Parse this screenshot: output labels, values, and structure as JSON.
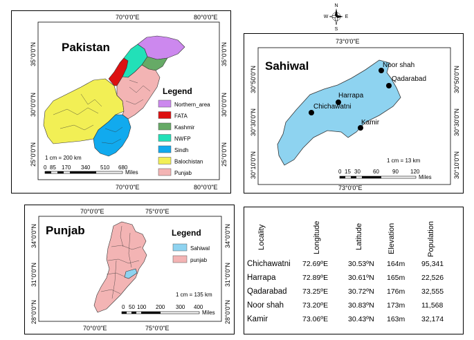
{
  "compass": {
    "n": "N",
    "s": "S",
    "e": "E",
    "w": "W"
  },
  "pakistan": {
    "title": "Pakistan",
    "top_lon": [
      "70°0'0\"E",
      "80°0'0\"E"
    ],
    "bottom_lon": [
      "70°0'0\"E",
      "80°0'0\"E"
    ],
    "left_lat": [
      "35°0'0\"N",
      "30°0'0\"N",
      "25°0'0\"N"
    ],
    "right_lat": [
      "35°0'0\"N",
      "30°0'0\"N",
      "25°0'0\"N"
    ],
    "scale_note": "1 cm = 200 km",
    "scale_ticks": [
      "0",
      "85",
      "170",
      "340",
      "510",
      "680"
    ],
    "scale_unit": "Miles",
    "legend": {
      "title": "Legend",
      "items": [
        {
          "label": "Northern_area",
          "color": "#cc88ee"
        },
        {
          "label": "FATA",
          "color": "#dd1111"
        },
        {
          "label": "Kashmir",
          "color": "#66aa66"
        },
        {
          "label": "NWFP",
          "color": "#22e0b8"
        },
        {
          "label": "Sindh",
          "color": "#11aaee"
        },
        {
          "label": "Balochistan",
          "color": "#f2ef55"
        },
        {
          "label": "Punjab",
          "color": "#f3b4b4"
        }
      ]
    }
  },
  "sahiwal": {
    "title": "Sahiwal",
    "top_lon": "73°0'0\"E",
    "bottom_lon": "73°0'0\"E",
    "left_lat": [
      "30°50'0\"N",
      "30°30'0\"N",
      "30°10'0\"N"
    ],
    "right_lat": [
      "30°50'0\"N",
      "30°30'0\"N",
      "30°10'0\"N"
    ],
    "scale_note": "1 cm = 13 km",
    "scale_ticks": [
      "0",
      "15",
      "30",
      "60",
      "90",
      "120"
    ],
    "scale_unit": "Miles",
    "fill": "#8ed3f0",
    "points": [
      {
        "name": "Noor shah"
      },
      {
        "name": "Qadarabad"
      },
      {
        "name": "Harrapa"
      },
      {
        "name": "Chichawatni"
      },
      {
        "name": "Kamir"
      }
    ]
  },
  "punjab": {
    "title": "Punjab",
    "top_lon": [
      "70°0'0\"E",
      "75°0'0\"E"
    ],
    "bottom_lon": [
      "70°0'0\"E",
      "75°0'0\"E"
    ],
    "left_lat": [
      "34°0'0\"N",
      "31°0'0\"N",
      "28°0'0\"N"
    ],
    "right_lat": [
      "34°0'0\"N",
      "31°0'0\"N",
      "28°0'0\"N"
    ],
    "scale_note": "1 cm = 135 km",
    "scale_ticks": [
      "0",
      "50",
      "100",
      "200",
      "300",
      "400"
    ],
    "scale_unit": "Miles",
    "legend": {
      "title": "Legend",
      "items": [
        {
          "label": "Sahiwal",
          "color": "#8ed3f0"
        },
        {
          "label": "punjab",
          "color": "#f3b4b4"
        }
      ]
    }
  },
  "table": {
    "headers": [
      "Locality",
      "Longitude",
      "Latitude",
      "Elevation",
      "Population"
    ],
    "rows": [
      [
        "Chichawatni",
        "72.69ºE",
        "30.53ºN",
        "164m",
        "95,341"
      ],
      [
        "Harrapa",
        "72.89ºE",
        "30.61ºN",
        "165m",
        "22,526"
      ],
      [
        "Qadarabad",
        "73.25ºE",
        "30.72ºN",
        "176m",
        "32,555"
      ],
      [
        "Noor shah",
        "73.20ºE",
        "30.83ºN",
        "173m",
        "11,568"
      ],
      [
        "Kamir",
        "73.06ºE",
        "30.43ºN",
        "163m",
        "32,174"
      ]
    ]
  }
}
